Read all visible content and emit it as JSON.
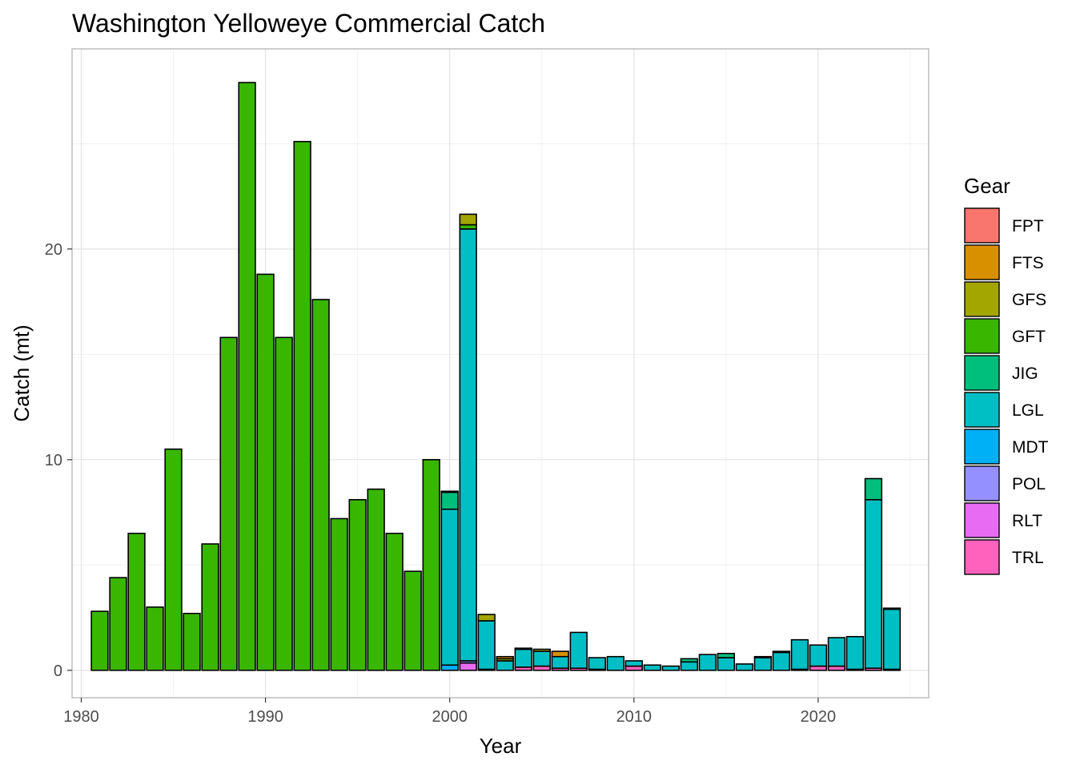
{
  "chart_data": {
    "type": "bar",
    "stacked": true,
    "title": "Washington Yelloweye Commercial Catch",
    "xlabel": "Year",
    "ylabel": "Catch (mt)",
    "xlim": [
      1979.5,
      2026
    ],
    "ylim": [
      -1.3,
      29.5
    ],
    "x_ticks": [
      1980,
      1990,
      2000,
      2010,
      2020
    ],
    "y_ticks": [
      0,
      10,
      20
    ],
    "grid": true,
    "legend_title": "Gear",
    "legend_position": "right",
    "gear_colors": {
      "FPT": "#F8766D",
      "FTS": "#D89000",
      "GFS": "#A3A500",
      "GFT": "#39B600",
      "JIG": "#00BF7D",
      "LGL": "#00BFC4",
      "MDT": "#00B0F6",
      "POL": "#9590FF",
      "RLT": "#E76BF3",
      "TRL": "#FF62BC"
    },
    "series_order": [
      "FPT",
      "FTS",
      "GFS",
      "GFT",
      "JIG",
      "LGL",
      "MDT",
      "POL",
      "RLT",
      "TRL"
    ],
    "data": [
      {
        "year": 1981,
        "segments": {
          "GFT": 2.8
        }
      },
      {
        "year": 1982,
        "segments": {
          "GFT": 4.4
        }
      },
      {
        "year": 1983,
        "segments": {
          "GFT": 6.5
        }
      },
      {
        "year": 1984,
        "segments": {
          "GFT": 3.0
        }
      },
      {
        "year": 1985,
        "segments": {
          "GFT": 10.5
        }
      },
      {
        "year": 1986,
        "segments": {
          "GFT": 2.7
        }
      },
      {
        "year": 1987,
        "segments": {
          "GFT": 6.0
        }
      },
      {
        "year": 1988,
        "segments": {
          "GFT": 15.8
        }
      },
      {
        "year": 1989,
        "segments": {
          "GFT": 27.9
        }
      },
      {
        "year": 1990,
        "segments": {
          "GFT": 18.8
        }
      },
      {
        "year": 1991,
        "segments": {
          "GFT": 15.8
        }
      },
      {
        "year": 1992,
        "segments": {
          "GFT": 25.1
        }
      },
      {
        "year": 1993,
        "segments": {
          "GFT": 17.6
        }
      },
      {
        "year": 1994,
        "segments": {
          "GFT": 7.2
        }
      },
      {
        "year": 1995,
        "segments": {
          "GFT": 8.1
        }
      },
      {
        "year": 1996,
        "segments": {
          "GFT": 8.6
        }
      },
      {
        "year": 1997,
        "segments": {
          "GFT": 6.5
        }
      },
      {
        "year": 1998,
        "segments": {
          "GFT": 4.7
        }
      },
      {
        "year": 1999,
        "segments": {
          "GFT": 10.0
        }
      },
      {
        "year": 2000,
        "segments": {
          "GFT": 0.05,
          "JIG": 0.8,
          "LGL": 7.4,
          "MDT": 0.25
        }
      },
      {
        "year": 2001,
        "segments": {
          "GFS": 0.5,
          "GFT": 0.2,
          "LGL": 20.5,
          "POL": 0.1,
          "RLT": 0.35
        }
      },
      {
        "year": 2002,
        "segments": {
          "GFS": 0.3,
          "LGL": 2.3,
          "TRL": 0.05
        }
      },
      {
        "year": 2003,
        "segments": {
          "FTS": 0.1,
          "GFS": 0.1,
          "LGL": 0.45
        }
      },
      {
        "year": 2004,
        "segments": {
          "GFS": 0.05,
          "LGL": 0.85,
          "TRL": 0.15
        }
      },
      {
        "year": 2005,
        "segments": {
          "GFS": 0.1,
          "LGL": 0.7,
          "TRL": 0.2
        }
      },
      {
        "year": 2006,
        "segments": {
          "FTS": 0.25,
          "LGL": 0.55,
          "TRL": 0.1
        }
      },
      {
        "year": 2007,
        "segments": {
          "LGL": 1.7,
          "TRL": 0.1
        }
      },
      {
        "year": 2008,
        "segments": {
          "LGL": 0.55,
          "TRL": 0.05
        }
      },
      {
        "year": 2009,
        "segments": {
          "LGL": 0.65
        }
      },
      {
        "year": 2010,
        "segments": {
          "LGL": 0.25,
          "TRL": 0.2
        }
      },
      {
        "year": 2011,
        "segments": {
          "LGL": 0.25
        }
      },
      {
        "year": 2012,
        "segments": {
          "LGL": 0.2
        }
      },
      {
        "year": 2013,
        "segments": {
          "JIG": 0.15,
          "LGL": 0.4
        }
      },
      {
        "year": 2014,
        "segments": {
          "LGL": 0.75
        }
      },
      {
        "year": 2015,
        "segments": {
          "JIG": 0.2,
          "LGL": 0.6
        }
      },
      {
        "year": 2016,
        "segments": {
          "LGL": 0.3
        }
      },
      {
        "year": 2017,
        "segments": {
          "JIG": 0.05,
          "LGL": 0.6
        }
      },
      {
        "year": 2018,
        "segments": {
          "JIG": 0.05,
          "LGL": 0.85
        }
      },
      {
        "year": 2019,
        "segments": {
          "LGL": 1.4,
          "TRL": 0.05
        }
      },
      {
        "year": 2020,
        "segments": {
          "LGL": 1.0,
          "TRL": 0.2
        }
      },
      {
        "year": 2021,
        "segments": {
          "LGL": 1.35,
          "TRL": 0.2
        }
      },
      {
        "year": 2022,
        "segments": {
          "LGL": 1.55,
          "TRL": 0.05
        }
      },
      {
        "year": 2023,
        "segments": {
          "JIG": 1.0,
          "LGL": 8.0,
          "TRL": 0.1
        }
      },
      {
        "year": 2024,
        "segments": {
          "JIG": 0.05,
          "LGL": 2.85,
          "TRL": 0.05
        }
      }
    ]
  }
}
